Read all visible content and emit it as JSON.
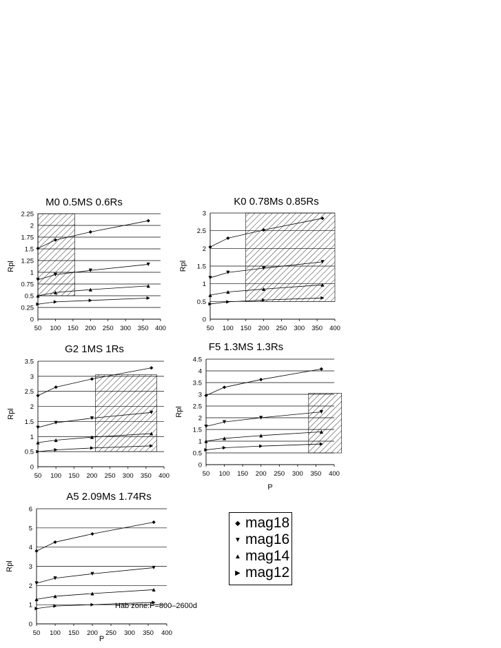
{
  "chart_data": [
    {
      "type": "line",
      "title": "M0 0.5MS 0.6Rs",
      "xlabel": "",
      "ylabel": "Rpl",
      "xlim": [
        50,
        400
      ],
      "ylim": [
        0,
        2.25
      ],
      "xticks": [
        50,
        100,
        150,
        200,
        250,
        300,
        350,
        400
      ],
      "yticks": [
        0,
        0.25,
        0.5,
        0.75,
        1,
        1.25,
        1.5,
        1.75,
        2,
        2.25
      ],
      "ytick_labels": [
        "0",
        "0.25",
        "0.5",
        "0.75",
        "1",
        "1.25",
        "1.5",
        "1.75",
        "2",
        "2.25"
      ],
      "x": [
        50,
        100,
        200,
        365
      ],
      "series": [
        {
          "name": "mag18",
          "values": [
            1.51,
            1.69,
            1.86,
            2.1
          ]
        },
        {
          "name": "mag16",
          "values": [
            0.84,
            0.95,
            1.04,
            1.17
          ]
        },
        {
          "name": "mag14",
          "values": [
            0.5,
            0.57,
            0.63,
            0.71
          ]
        },
        {
          "name": "mag12",
          "values": [
            0.32,
            0.37,
            0.4,
            0.45
          ]
        }
      ],
      "hatch": {
        "x": [
          50,
          155
        ],
        "y": [
          0.5,
          2.25
        ]
      }
    },
    {
      "type": "line",
      "title": "K0 0.78Ms 0.85Rs",
      "xlabel": "",
      "ylabel": "Rpl",
      "xlim": [
        50,
        400
      ],
      "ylim": [
        0,
        3
      ],
      "xticks": [
        50,
        100,
        150,
        200,
        250,
        300,
        350,
        400
      ],
      "yticks": [
        0,
        0.5,
        1,
        1.5,
        2,
        2.5,
        3
      ],
      "ytick_labels": [
        "0",
        "0.5",
        "1",
        "1.5",
        "2",
        "2.5",
        "3"
      ],
      "x": [
        50,
        100,
        200,
        365
      ],
      "series": [
        {
          "name": "mag18",
          "values": [
            2.04,
            2.29,
            2.52,
            2.85
          ]
        },
        {
          "name": "mag16",
          "values": [
            1.17,
            1.32,
            1.44,
            1.62
          ]
        },
        {
          "name": "mag14",
          "values": [
            0.68,
            0.77,
            0.85,
            0.97
          ]
        },
        {
          "name": "mag12",
          "values": [
            0.43,
            0.49,
            0.54,
            0.6
          ]
        }
      ],
      "hatch": {
        "x": [
          150,
          400
        ],
        "y": [
          0.5,
          3
        ]
      }
    },
    {
      "type": "line",
      "title": "G2 1MS 1Rs",
      "xlabel": "",
      "ylabel": "Rpl",
      "xlim": [
        50,
        400
      ],
      "ylim": [
        0,
        3.5
      ],
      "xticks": [
        50,
        100,
        150,
        200,
        250,
        300,
        350,
        400
      ],
      "yticks": [
        0,
        0.5,
        1,
        1.5,
        2,
        2.5,
        3,
        3.5
      ],
      "ytick_labels": [
        "0",
        "0.5",
        "1",
        "1.5",
        "2",
        "2.5",
        "3",
        "3.5"
      ],
      "x": [
        50,
        100,
        200,
        365
      ],
      "series": [
        {
          "name": "mag18",
          "values": [
            2.36,
            2.64,
            2.91,
            3.28
          ]
        },
        {
          "name": "mag16",
          "values": [
            1.3,
            1.46,
            1.61,
            1.8
          ]
        },
        {
          "name": "mag14",
          "values": [
            0.8,
            0.88,
            0.98,
            1.1
          ]
        },
        {
          "name": "mag12",
          "values": [
            0.5,
            0.56,
            0.62,
            0.69
          ]
        }
      ],
      "hatch": {
        "x": [
          210,
          380
        ],
        "y": [
          0.5,
          3.05
        ]
      }
    },
    {
      "type": "line",
      "title": "F5 1.3MS 1.3Rs",
      "xlabel": "P",
      "ylabel": "Rpl",
      "xlim": [
        50,
        400
      ],
      "ylim": [
        0,
        4.5
      ],
      "xticks": [
        50,
        100,
        150,
        200,
        250,
        300,
        350,
        400
      ],
      "yticks": [
        0,
        0.5,
        1,
        1.5,
        2,
        2.5,
        3,
        3.5,
        4,
        4.5
      ],
      "ytick_labels": [
        "0",
        "0.5",
        "1",
        "1.5",
        "2",
        "2.5",
        "3",
        "3.5",
        "4",
        "4.5"
      ],
      "x": [
        50,
        100,
        200,
        365
      ],
      "series": [
        {
          "name": "mag18",
          "values": [
            2.95,
            3.3,
            3.63,
            4.08
          ]
        },
        {
          "name": "mag16",
          "values": [
            1.63,
            1.82,
            2.0,
            2.25
          ]
        },
        {
          "name": "mag14",
          "values": [
            1.0,
            1.12,
            1.24,
            1.4
          ]
        },
        {
          "name": "mag12",
          "values": [
            0.63,
            0.72,
            0.79,
            0.88
          ]
        }
      ],
      "hatch": {
        "x": [
          330,
          420
        ],
        "y": [
          0.5,
          3.05
        ]
      }
    },
    {
      "type": "line",
      "title": "A5 2.09Ms 1.74Rs",
      "xlabel": "P",
      "ylabel": "Rpl",
      "xlim": [
        50,
        400
      ],
      "ylim": [
        0,
        6
      ],
      "xticks": [
        50,
        100,
        150,
        200,
        250,
        300,
        350,
        400
      ],
      "yticks": [
        0,
        1,
        2,
        3,
        4,
        5,
        6
      ],
      "ytick_labels": [
        "0",
        "1",
        "2",
        "3",
        "4",
        "5",
        "6"
      ],
      "x": [
        50,
        100,
        200,
        365
      ],
      "series": [
        {
          "name": "mag18",
          "values": [
            3.8,
            4.26,
            4.69,
            5.3
          ]
        },
        {
          "name": "mag16",
          "values": [
            2.12,
            2.38,
            2.61,
            2.93
          ]
        },
        {
          "name": "mag14",
          "values": [
            1.28,
            1.44,
            1.58,
            1.78
          ]
        },
        {
          "name": "mag12",
          "values": [
            0.8,
            0.93,
            1.0,
            1.12
          ]
        }
      ],
      "hatch": null
    }
  ],
  "legend": {
    "items": [
      {
        "label": "mag18",
        "marker": "diamond"
      },
      {
        "label": "mag16",
        "marker": "triangle-down"
      },
      {
        "label": "mag14",
        "marker": "triangle-up"
      },
      {
        "label": "mag12",
        "marker": "triangle-right"
      }
    ]
  },
  "annotation": "Hab zone:P=800–2600d"
}
